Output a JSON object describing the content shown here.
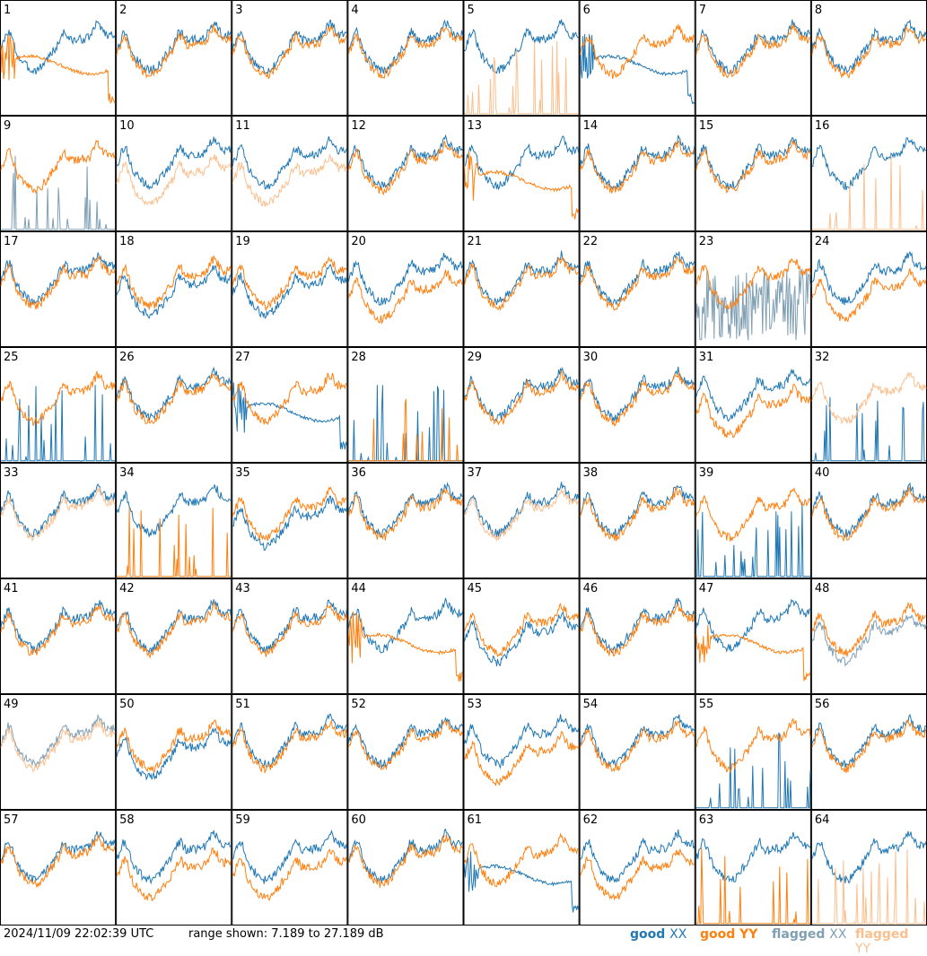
{
  "footer": {
    "timestamp": "2024/11/09 22:02:39 UTC",
    "range": "range shown: 7.189 to 27.189 dB"
  },
  "legend": [
    {
      "word": "good",
      "pol": "XX",
      "color": "#1f77b4"
    },
    {
      "word": "good",
      "pol": "YY",
      "color": "#ff7f0e"
    },
    {
      "word": "flagged",
      "pol": "XX",
      "color": "#7f9fb4"
    },
    {
      "word": "flagged",
      "pol": "YY",
      "color": "#fbbf8e"
    }
  ],
  "colors": {
    "good_xx": "#1f77b4",
    "good_yy": "#ff7f0e",
    "flagged_xx": "#7f9fb4",
    "flagged_yy": "#fbbf8e"
  },
  "chart_data": {
    "type": "line",
    "grid_rows": 8,
    "grid_cols": 8,
    "ylim": [
      7.189,
      27.189
    ],
    "yunit": "dB",
    "note_values": "relative spectral level, 0 = bottom of panel, 1 = top",
    "panels": [
      {
        "label": "1",
        "xx": "normal",
        "yy": "dropout",
        "xxf": false,
        "yyf": false
      },
      {
        "label": "2",
        "xx": "normal",
        "yy": "normal",
        "xxf": false,
        "yyf": false
      },
      {
        "label": "3",
        "xx": "normal",
        "yy": "normal",
        "xxf": false,
        "yyf": false
      },
      {
        "label": "4",
        "xx": "normal",
        "yy": "normal",
        "xxf": false,
        "yyf": false
      },
      {
        "label": "5",
        "xx": "normal",
        "yy": "spiky",
        "xxf": false,
        "yyf": true
      },
      {
        "label": "6",
        "xx": "dropout",
        "yy": "normal",
        "xxf": false,
        "yyf": false
      },
      {
        "label": "7",
        "xx": "normal",
        "yy": "normal",
        "xxf": false,
        "yyf": false
      },
      {
        "label": "8",
        "xx": "normal",
        "yy": "normal",
        "xxf": false,
        "yyf": false
      },
      {
        "label": "9",
        "xx": "spiky",
        "yy": "normal",
        "xxf": true,
        "yyf": false
      },
      {
        "label": "10",
        "xx": "normal",
        "yy": "low",
        "xxf": false,
        "yyf": true
      },
      {
        "label": "11",
        "xx": "normal",
        "yy": "low",
        "xxf": false,
        "yyf": true
      },
      {
        "label": "12",
        "xx": "normal",
        "yy": "normal",
        "xxf": false,
        "yyf": false
      },
      {
        "label": "13",
        "xx": "normal",
        "yy": "dropout",
        "xxf": false,
        "yyf": false
      },
      {
        "label": "14",
        "xx": "normal",
        "yy": "normal",
        "xxf": false,
        "yyf": false
      },
      {
        "label": "15",
        "xx": "normal",
        "yy": "normal",
        "xxf": false,
        "yyf": false
      },
      {
        "label": "16",
        "xx": "normal",
        "yy": "spiky",
        "xxf": false,
        "yyf": true
      },
      {
        "label": "17",
        "xx": "normal",
        "yy": "normal",
        "xxf": false,
        "yyf": false
      },
      {
        "label": "18",
        "xx": "low",
        "yy": "normal",
        "xxf": false,
        "yyf": false
      },
      {
        "label": "19",
        "xx": "low",
        "yy": "normal",
        "xxf": false,
        "yyf": false
      },
      {
        "label": "20",
        "xx": "normal",
        "yy": "low",
        "xxf": false,
        "yyf": false
      },
      {
        "label": "21",
        "xx": "normal",
        "yy": "normal",
        "xxf": false,
        "yyf": false
      },
      {
        "label": "22",
        "xx": "normal",
        "yy": "normal",
        "xxf": false,
        "yyf": false
      },
      {
        "label": "23",
        "xx": "noisy",
        "yy": "normal",
        "xxf": true,
        "yyf": false
      },
      {
        "label": "24",
        "xx": "normal",
        "yy": "low",
        "xxf": false,
        "yyf": false
      },
      {
        "label": "25",
        "xx": "spiky",
        "yy": "normal",
        "xxf": false,
        "yyf": false
      },
      {
        "label": "26",
        "xx": "normal",
        "yy": "normal",
        "xxf": false,
        "yyf": false
      },
      {
        "label": "27",
        "xx": "dropout",
        "yy": "normal",
        "xxf": false,
        "yyf": false
      },
      {
        "label": "28",
        "xx": "spiky",
        "yy": "spiky",
        "xxf": false,
        "yyf": false
      },
      {
        "label": "29",
        "xx": "normal",
        "yy": "normal",
        "xxf": false,
        "yyf": false
      },
      {
        "label": "30",
        "xx": "normal",
        "yy": "normal",
        "xxf": false,
        "yyf": false
      },
      {
        "label": "31",
        "xx": "normal",
        "yy": "low",
        "xxf": false,
        "yyf": false
      },
      {
        "label": "32",
        "xx": "spiky",
        "yy": "normal",
        "xxf": false,
        "yyf": true
      },
      {
        "label": "33",
        "xx": "normal",
        "yy": "normal",
        "xxf": false,
        "yyf": true
      },
      {
        "label": "34",
        "xx": "normal",
        "yy": "spiky",
        "xxf": false,
        "yyf": false
      },
      {
        "label": "35",
        "xx": "low",
        "yy": "normal",
        "xxf": false,
        "yyf": false
      },
      {
        "label": "36",
        "xx": "normal",
        "yy": "normal",
        "xxf": false,
        "yyf": false
      },
      {
        "label": "37",
        "xx": "normal",
        "yy": "normal",
        "xxf": false,
        "yyf": true
      },
      {
        "label": "38",
        "xx": "normal",
        "yy": "normal",
        "xxf": false,
        "yyf": false
      },
      {
        "label": "39",
        "xx": "spiky",
        "yy": "normal",
        "xxf": false,
        "yyf": false
      },
      {
        "label": "40",
        "xx": "normal",
        "yy": "normal",
        "xxf": false,
        "yyf": false
      },
      {
        "label": "41",
        "xx": "normal",
        "yy": "normal",
        "xxf": false,
        "yyf": false
      },
      {
        "label": "42",
        "xx": "normal",
        "yy": "normal",
        "xxf": false,
        "yyf": false
      },
      {
        "label": "43",
        "xx": "normal",
        "yy": "normal",
        "xxf": false,
        "yyf": false
      },
      {
        "label": "44",
        "xx": "normal",
        "yy": "dropout",
        "xxf": false,
        "yyf": false
      },
      {
        "label": "45",
        "xx": "low",
        "yy": "normal",
        "xxf": false,
        "yyf": false
      },
      {
        "label": "46",
        "xx": "normal",
        "yy": "normal",
        "xxf": false,
        "yyf": false
      },
      {
        "label": "47",
        "xx": "normal",
        "yy": "dropout",
        "xxf": false,
        "yyf": false
      },
      {
        "label": "48",
        "xx": "low",
        "yy": "normal",
        "xxf": true,
        "yyf": false
      },
      {
        "label": "49",
        "xx": "normal",
        "yy": "normal",
        "xxf": true,
        "yyf": true
      },
      {
        "label": "50",
        "xx": "low",
        "yy": "normal",
        "xxf": false,
        "yyf": false
      },
      {
        "label": "51",
        "xx": "normal",
        "yy": "normal",
        "xxf": false,
        "yyf": false
      },
      {
        "label": "52",
        "xx": "normal",
        "yy": "normal",
        "xxf": false,
        "yyf": false
      },
      {
        "label": "53",
        "xx": "normal",
        "yy": "low",
        "xxf": false,
        "yyf": false
      },
      {
        "label": "54",
        "xx": "normal",
        "yy": "normal",
        "xxf": false,
        "yyf": false
      },
      {
        "label": "55",
        "xx": "spiky",
        "yy": "normal",
        "xxf": false,
        "yyf": false
      },
      {
        "label": "56",
        "xx": "normal",
        "yy": "normal",
        "xxf": false,
        "yyf": false
      },
      {
        "label": "57",
        "xx": "normal",
        "yy": "normal",
        "xxf": false,
        "yyf": false
      },
      {
        "label": "58",
        "xx": "normal",
        "yy": "low",
        "xxf": false,
        "yyf": false
      },
      {
        "label": "59",
        "xx": "normal",
        "yy": "low",
        "xxf": false,
        "yyf": false
      },
      {
        "label": "60",
        "xx": "normal",
        "yy": "normal",
        "xxf": false,
        "yyf": false
      },
      {
        "label": "61",
        "xx": "dropout",
        "yy": "normal",
        "xxf": false,
        "yyf": false
      },
      {
        "label": "62",
        "xx": "normal",
        "yy": "low",
        "xxf": false,
        "yyf": false
      },
      {
        "label": "63",
        "xx": "normal",
        "yy": "spiky",
        "xxf": false,
        "yyf": false
      },
      {
        "label": "64",
        "xx": "normal",
        "yy": "spiky",
        "xxf": false,
        "yyf": true
      }
    ]
  }
}
